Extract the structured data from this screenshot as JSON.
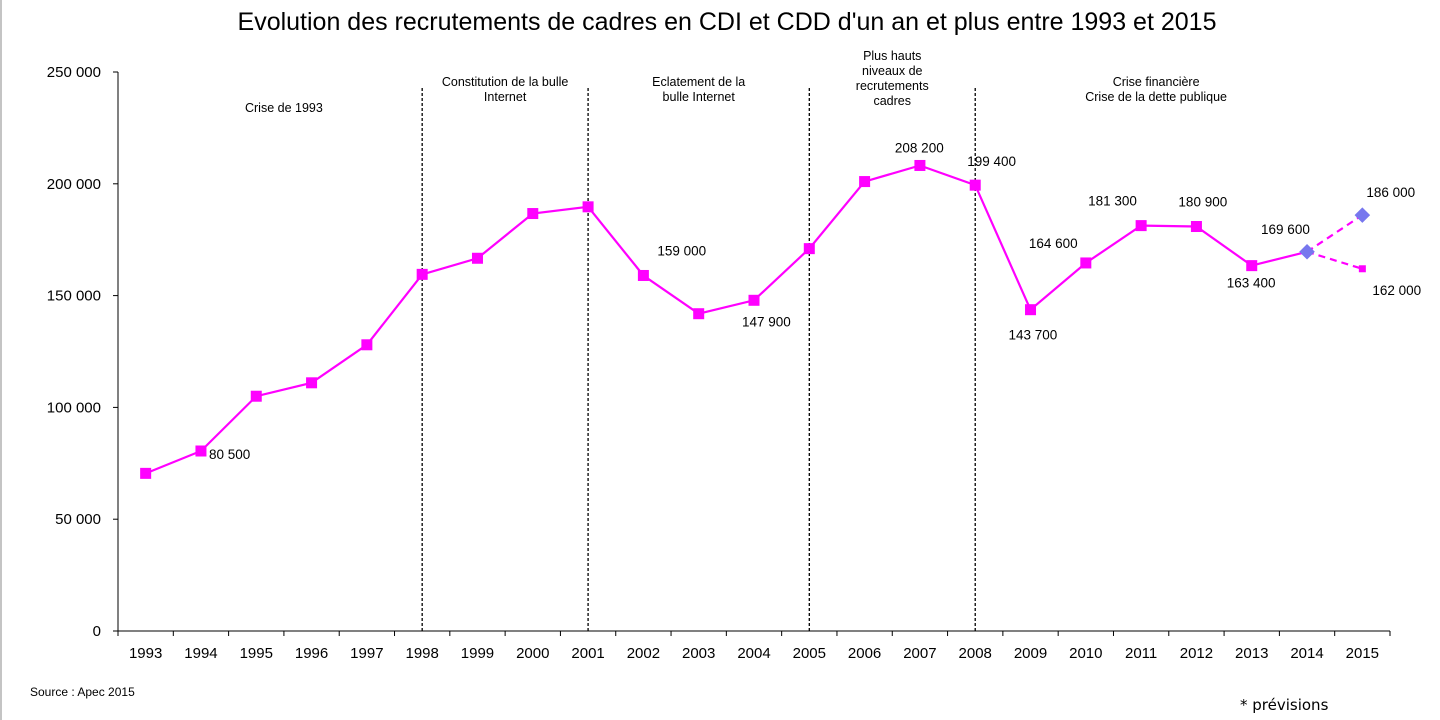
{
  "chart_data": {
    "type": "line",
    "title": "Evolution des recrutements de cadres en CDI et CDD d'un an et plus entre 1993 et 2015",
    "xlabel": "",
    "ylabel": "",
    "categories": [
      "1993",
      "1994",
      "1995",
      "1996",
      "1997",
      "1998",
      "1999",
      "2000",
      "2001",
      "2002",
      "2003",
      "2004",
      "2005",
      "2006",
      "2007",
      "2008",
      "2009",
      "2010",
      "2011",
      "2012",
      "2013",
      "2014",
      "2015"
    ],
    "ylim": [
      0,
      250000
    ],
    "y_ticks": [
      0,
      50000,
      100000,
      150000,
      200000,
      250000
    ],
    "y_tick_labels": [
      "0",
      "50 000",
      "100 000",
      "150 000",
      "200 000",
      "250 000"
    ],
    "grid": false,
    "color": "#ff00ff",
    "forecast_marker_color": "#7777ee",
    "series": [
      {
        "values": [
          70500,
          80500,
          105000,
          111000,
          128000,
          159500,
          166700,
          186700,
          189700,
          159000,
          141900,
          147900,
          171000,
          201000,
          208200,
          199400,
          143700,
          164600,
          181300,
          180900,
          163400,
          169600,
          null
        ]
      },
      {
        "values": [
          null,
          null,
          null,
          null,
          null,
          null,
          null,
          null,
          null,
          null,
          null,
          null,
          null,
          null,
          null,
          null,
          null,
          null,
          null,
          null,
          null,
          169600,
          186000
        ],
        "style": "dashed"
      },
      {
        "values": [
          null,
          null,
          null,
          null,
          null,
          null,
          null,
          null,
          null,
          null,
          null,
          null,
          null,
          null,
          null,
          null,
          null,
          null,
          null,
          null,
          null,
          169600,
          162000
        ],
        "style": "dashed"
      }
    ],
    "data_labels": [
      {
        "x": "1994",
        "y": 80500,
        "text": "80 500"
      },
      {
        "x": "2002",
        "y": 159000,
        "text": "159 000"
      },
      {
        "x": "2004",
        "y": 147900,
        "text": "147 900"
      },
      {
        "x": "2007",
        "y": 208200,
        "text": "208 200"
      },
      {
        "x": "2008",
        "y": 199400,
        "text": "199 400"
      },
      {
        "x": "2009",
        "y": 143700,
        "text": "143 700"
      },
      {
        "x": "2010",
        "y": 164600,
        "text": "164 600"
      },
      {
        "x": "2011",
        "y": 181300,
        "text": "181 300"
      },
      {
        "x": "2012",
        "y": 180900,
        "text": "180 900"
      },
      {
        "x": "2013",
        "y": 163400,
        "text": "163 400"
      },
      {
        "x": "2014",
        "y": 169600,
        "text": "169 600"
      },
      {
        "x": "2015",
        "y": 186000,
        "text": "186 000"
      },
      {
        "x": "2015",
        "y": 162000,
        "text": "162 000"
      }
    ],
    "vertical_lines": [
      {
        "x": "1998",
        "style": "dashed"
      },
      {
        "x": "2001",
        "style": "dashed"
      },
      {
        "x": "2005",
        "style": "dashed"
      },
      {
        "x": "2008",
        "style": "dashed"
      }
    ],
    "period_annotations": [
      {
        "x_from": "1993",
        "x_to": "1998",
        "lines": [
          "Crise de 1993"
        ]
      },
      {
        "x_from": "1998",
        "x_to": "2001",
        "lines": [
          "Constitution de la bulle",
          "Internet"
        ]
      },
      {
        "x_from": "2001",
        "x_to": "2005",
        "lines": [
          "Eclatement de la",
          "bulle Internet"
        ]
      },
      {
        "x_from": "2005",
        "x_to": "2008",
        "lines": [
          "Plus hauts",
          "niveaux de",
          "recrutements",
          "cadres"
        ]
      },
      {
        "x_from": "2008",
        "x_to": "2015",
        "lines": [
          "Crise financière",
          "Crise de la dette publique"
        ]
      }
    ],
    "source": "Source : Apec 2015",
    "footnote": "* prévisions"
  }
}
